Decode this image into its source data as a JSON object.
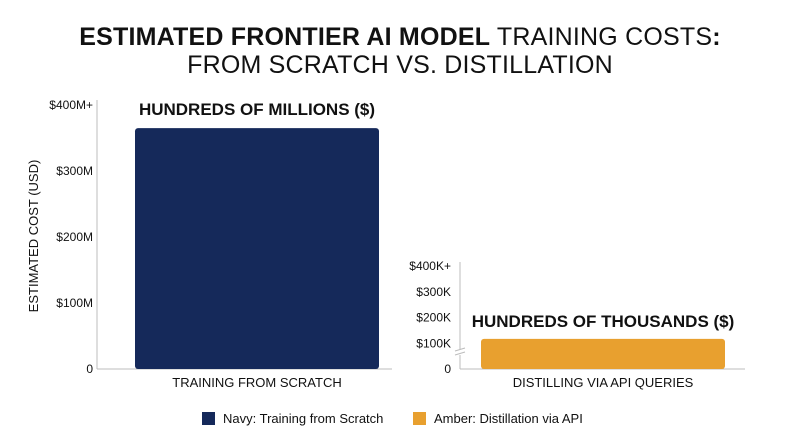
{
  "title": {
    "line1_bold": "ESTIMATED FRONTIER AI MODEL",
    "line1_regular": "TRAINING COSTS",
    "line1_colon": ":",
    "line2": "FROM SCRATCH VS. DISTILLATION"
  },
  "colors": {
    "navy": "#15295a",
    "amber": "#e8a02f",
    "axis": "#bcbcbc",
    "text": "#111111"
  },
  "chart_data": [
    {
      "type": "bar",
      "categories": [
        "TRAINING FROM SCRATCH"
      ],
      "values": [
        365
      ],
      "unit": "USD millions",
      "ylabel": "ESTIMATED COST (USD)",
      "ylim": [
        0,
        400
      ],
      "yticks": [
        {
          "value": 0,
          "label": "0"
        },
        {
          "value": 100,
          "label": "$100M"
        },
        {
          "value": 200,
          "label": "$200M"
        },
        {
          "value": 300,
          "label": "$300M"
        },
        {
          "value": 400,
          "label": "$400M+"
        }
      ],
      "annotation": "HUNDREDS OF MILLIONS ($)",
      "color": "#15295a",
      "grid": false
    },
    {
      "type": "bar",
      "categories": [
        "DISTILLING VIA API QUERIES"
      ],
      "values": [
        117
      ],
      "unit": "USD thousands",
      "ylim": [
        0,
        400
      ],
      "yticks": [
        {
          "value": 0,
          "label": "0"
        },
        {
          "value": 100,
          "label": "$100K"
        },
        {
          "value": 200,
          "label": "$200K"
        },
        {
          "value": 300,
          "label": "$300K"
        },
        {
          "value": 400,
          "label": "$400K+"
        }
      ],
      "annotation": "HUNDREDS OF THOUSANDS ($)",
      "color": "#e8a02f",
      "axis_break": true,
      "grid": false
    }
  ],
  "legend": {
    "placement": "bottom-center",
    "items": [
      {
        "label": "Navy: Training from Scratch",
        "color": "#15295a"
      },
      {
        "label": "Amber: Distillation via API",
        "color": "#e8a02f"
      }
    ]
  }
}
